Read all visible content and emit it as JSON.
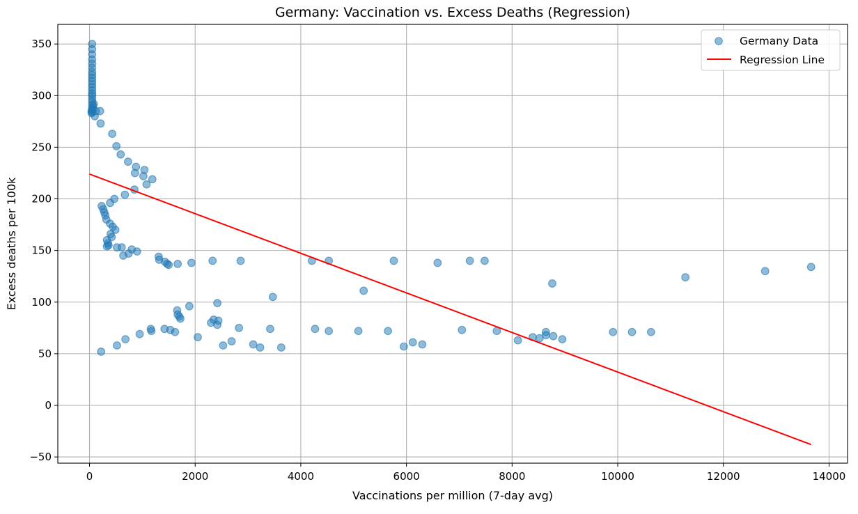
{
  "chart_data": {
    "type": "scatter",
    "title": "Germany: Vaccination vs. Excess Deaths (Regression)",
    "xlabel": "Vaccinations per million (7-day avg)",
    "ylabel": "Excess deaths per 100k",
    "xlim": [
      -600,
      14350
    ],
    "ylim": [
      -56,
      369
    ],
    "xticks": [
      0,
      2000,
      4000,
      6000,
      8000,
      10000,
      12000,
      14000
    ],
    "yticks": [
      -50,
      0,
      50,
      100,
      150,
      200,
      250,
      300,
      350
    ],
    "grid": true,
    "legend_position": "top-right",
    "colors": {
      "points": "#1f77b4",
      "regression": "#ff0000",
      "grid": "#b0b0b0"
    },
    "series": [
      {
        "name": "Germany Data",
        "kind": "scatter",
        "points": [
          [
            50,
            350
          ],
          [
            50,
            345
          ],
          [
            50,
            340
          ],
          [
            50,
            335
          ],
          [
            50,
            331
          ],
          [
            50,
            327
          ],
          [
            50,
            323
          ],
          [
            50,
            320
          ],
          [
            50,
            317
          ],
          [
            50,
            314
          ],
          [
            50,
            311
          ],
          [
            50,
            308
          ],
          [
            50,
            305
          ],
          [
            50,
            302
          ],
          [
            50,
            300
          ],
          [
            50,
            297
          ],
          [
            50,
            294
          ],
          [
            50,
            291
          ],
          [
            50,
            288
          ],
          [
            50,
            286
          ],
          [
            50,
            284
          ],
          [
            40,
            285
          ],
          [
            40,
            283
          ],
          [
            60,
            287
          ],
          [
            70,
            290
          ],
          [
            80,
            292
          ],
          [
            100,
            280
          ],
          [
            120,
            285
          ],
          [
            200,
            285
          ],
          [
            210,
            273
          ],
          [
            430,
            263
          ],
          [
            510,
            251
          ],
          [
            590,
            243
          ],
          [
            730,
            236
          ],
          [
            880,
            231
          ],
          [
            1040,
            228
          ],
          [
            860,
            225
          ],
          [
            1020,
            222
          ],
          [
            1190,
            219
          ],
          [
            1080,
            214
          ],
          [
            850,
            209
          ],
          [
            670,
            204
          ],
          [
            470,
            200
          ],
          [
            390,
            196
          ],
          [
            230,
            193
          ],
          [
            260,
            190
          ],
          [
            280,
            187
          ],
          [
            300,
            184
          ],
          [
            320,
            180
          ],
          [
            390,
            176
          ],
          [
            440,
            173
          ],
          [
            490,
            170
          ],
          [
            400,
            166
          ],
          [
            420,
            163
          ],
          [
            330,
            160
          ],
          [
            350,
            157
          ],
          [
            330,
            154
          ],
          [
            360,
            155
          ],
          [
            520,
            153
          ],
          [
            610,
            153
          ],
          [
            800,
            151
          ],
          [
            900,
            149
          ],
          [
            740,
            147
          ],
          [
            640,
            145
          ],
          [
            1310,
            144
          ],
          [
            1320,
            141
          ],
          [
            1430,
            139
          ],
          [
            1470,
            137
          ],
          [
            1500,
            136
          ],
          [
            1670,
            137
          ],
          [
            1930,
            138
          ],
          [
            2330,
            140
          ],
          [
            2860,
            140
          ],
          [
            4210,
            140
          ],
          [
            4530,
            140
          ],
          [
            5760,
            140
          ],
          [
            6590,
            138
          ],
          [
            7200,
            140
          ],
          [
            7480,
            140
          ],
          [
            8760,
            118
          ],
          [
            5190,
            111
          ],
          [
            3470,
            105
          ],
          [
            11280,
            124
          ],
          [
            12790,
            130
          ],
          [
            13660,
            134
          ],
          [
            2420,
            99
          ],
          [
            1890,
            96
          ],
          [
            1660,
            92
          ],
          [
            1670,
            88
          ],
          [
            1700,
            86
          ],
          [
            1720,
            84
          ],
          [
            2350,
            83
          ],
          [
            2440,
            82
          ],
          [
            2300,
            80
          ],
          [
            2420,
            78
          ],
          [
            2830,
            75
          ],
          [
            3420,
            74
          ],
          [
            4270,
            74
          ],
          [
            4530,
            72
          ],
          [
            5090,
            72
          ],
          [
            5650,
            72
          ],
          [
            7050,
            73
          ],
          [
            7710,
            72
          ],
          [
            8640,
            71
          ],
          [
            8640,
            68
          ],
          [
            8780,
            67
          ],
          [
            8950,
            64
          ],
          [
            8520,
            65
          ],
          [
            8390,
            66
          ],
          [
            8110,
            63
          ],
          [
            9910,
            71
          ],
          [
            10270,
            71
          ],
          [
            10630,
            71
          ],
          [
            1420,
            74
          ],
          [
            1160,
            74
          ],
          [
            1170,
            72
          ],
          [
            1530,
            73
          ],
          [
            1620,
            71
          ],
          [
            950,
            69
          ],
          [
            680,
            64
          ],
          [
            520,
            58
          ],
          [
            220,
            52
          ],
          [
            2050,
            66
          ],
          [
            2690,
            62
          ],
          [
            2530,
            58
          ],
          [
            3100,
            59
          ],
          [
            3230,
            56
          ],
          [
            3630,
            56
          ],
          [
            5950,
            57
          ],
          [
            6120,
            61
          ],
          [
            6300,
            59
          ]
        ]
      },
      {
        "name": "Regression Line",
        "kind": "line",
        "points": [
          [
            0,
            224
          ],
          [
            13660,
            -38
          ]
        ]
      }
    ]
  }
}
